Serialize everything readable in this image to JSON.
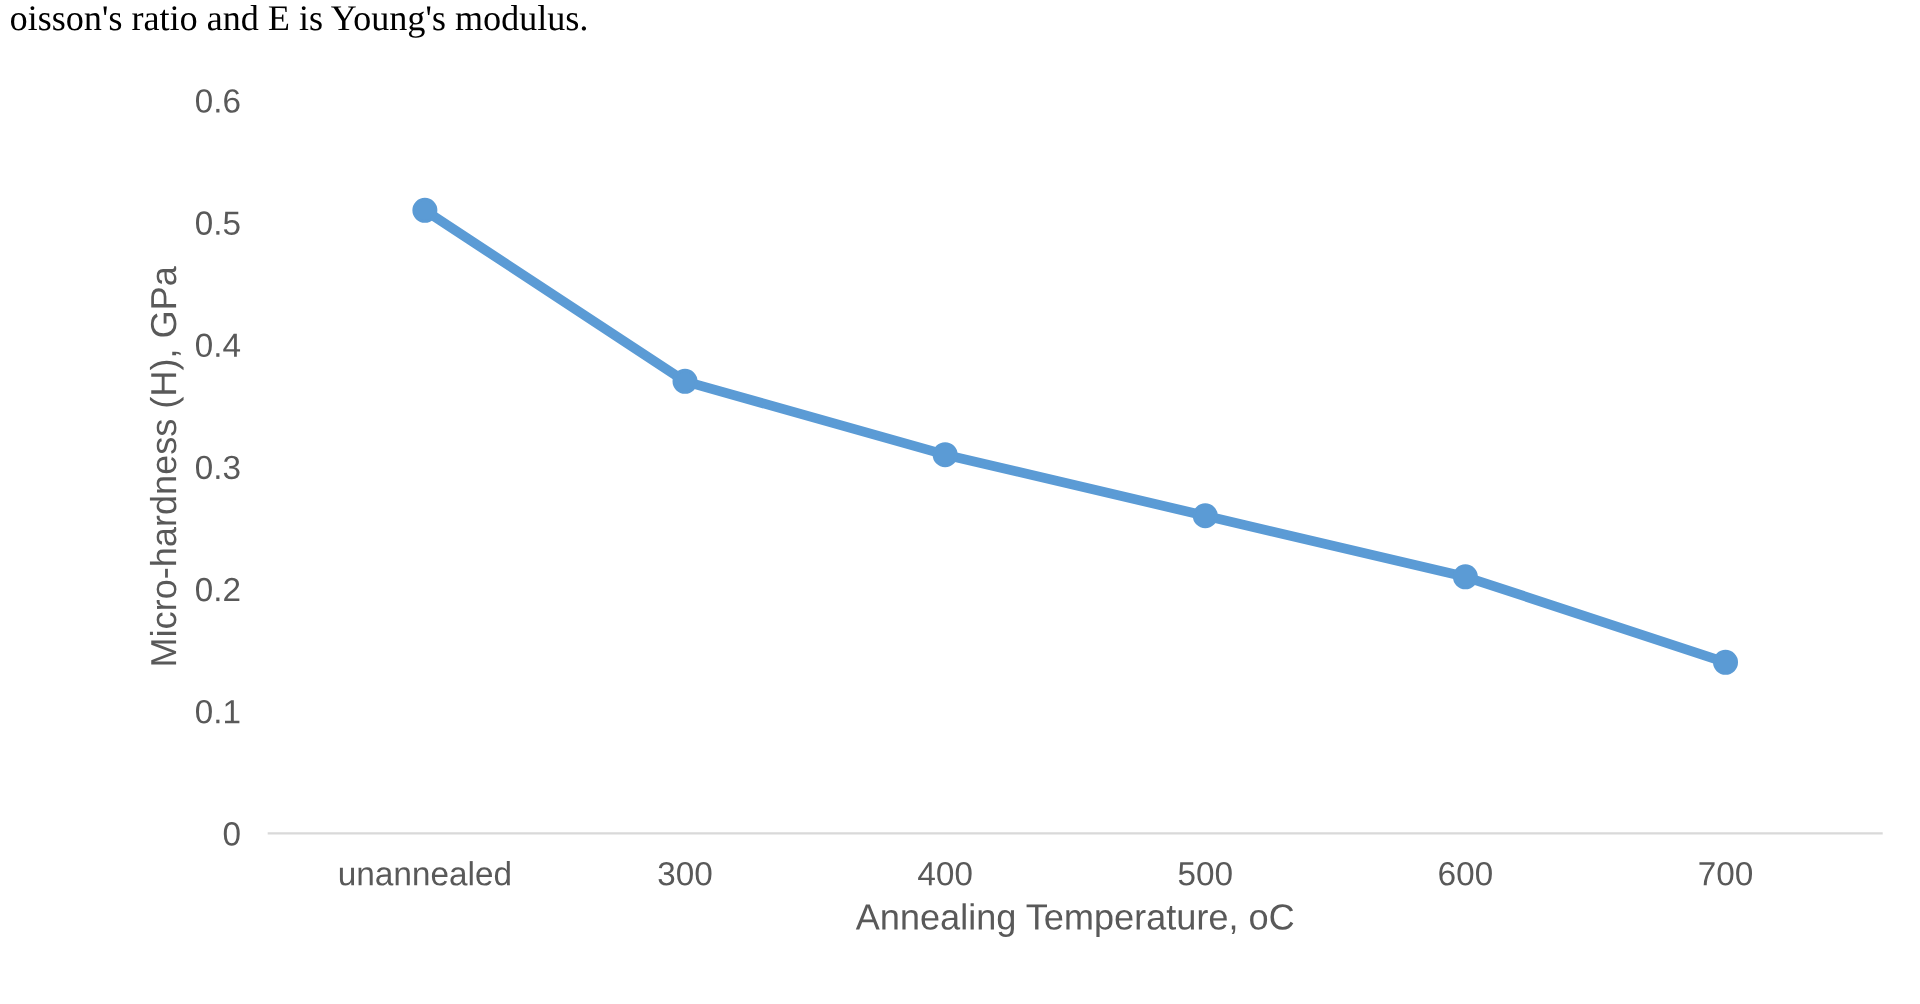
{
  "chart_data": {
    "type": "line",
    "xlabel": "Annealing Temperature, oC",
    "ylabel": "Micro-hardness (H), GPa",
    "categories": [
      "unannealed",
      "300",
      "400",
      "500",
      "600",
      "700"
    ],
    "series": [
      {
        "color": "#5b9bd5",
        "values": [
          0.51,
          0.37,
          0.31,
          0.26,
          0.21,
          0.14
        ]
      }
    ],
    "ylim": [
      0,
      0.6
    ],
    "yticks": [
      {
        "value": 0,
        "label": "0"
      },
      0.1,
      0.2,
      0.3,
      0.4,
      0.5,
      0.6
    ],
    "marker": "circle",
    "line_style": "solid",
    "grid": false,
    "legend": false,
    "annotations": [
      "oisson's ratio and E is Young's modulus."
    ]
  }
}
